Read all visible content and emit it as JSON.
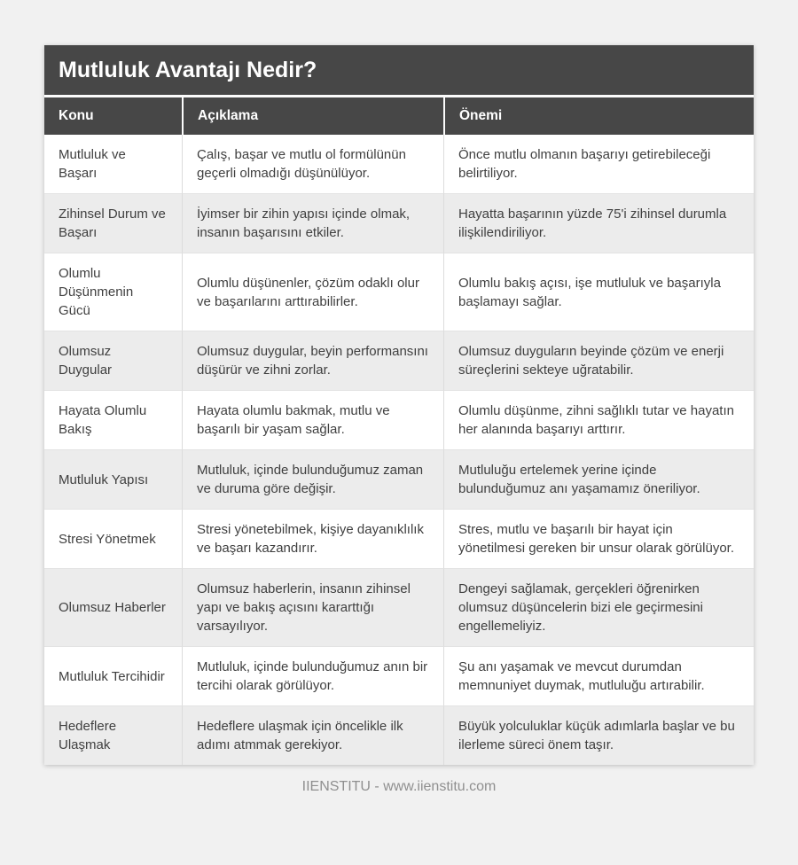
{
  "page": {
    "background_color": "#f1f1f1",
    "accent_dark_color": "#474747",
    "row_alt_color": "#ececec",
    "footer_text": "IIENSTITU - www.iienstitu.com"
  },
  "table": {
    "title": "Mutluluk Avantajı Nedir?",
    "columns": [
      "Konu",
      "Açıklama",
      "Önemi"
    ],
    "rows": [
      {
        "konu": "Mutluluk ve Başarı",
        "aciklama": "Çalış, başar ve mutlu ol formülünün geçerli olmadığı düşünülüyor.",
        "onemi": "Önce mutlu olmanın başarıyı getirebileceği belirtiliyor."
      },
      {
        "konu": "Zihinsel Durum ve Başarı",
        "aciklama": "İyimser bir zihin yapısı içinde olmak, insanın başarısını etkiler.",
        "onemi": "Hayatta başarının yüzde 75'i zihinsel durumla ilişkilendiriliyor."
      },
      {
        "konu": "Olumlu Düşünmenin Gücü",
        "aciklama": "Olumlu düşünenler, çözüm odaklı olur ve başarılarını arttırabilirler.",
        "onemi": "Olumlu bakış açısı, işe mutluluk ve başarıyla başlamayı sağlar."
      },
      {
        "konu": "Olumsuz Duygular",
        "aciklama": "Olumsuz duygular, beyin performansını düşürür ve zihni zorlar.",
        "onemi": "Olumsuz duyguların beyinde çözüm ve enerji süreçlerini sekteye uğratabilir."
      },
      {
        "konu": "Hayata Olumlu Bakış",
        "aciklama": "Hayata olumlu bakmak, mutlu ve başarılı bir yaşam sağlar.",
        "onemi": "Olumlu düşünme, zihni sağlıklı tutar ve hayatın her alanında başarıyı arttırır."
      },
      {
        "konu": "Mutluluk Yapısı",
        "aciklama": "Mutluluk, içinde bulunduğumuz zaman ve duruma göre değişir.",
        "onemi": "Mutluluğu ertelemek yerine içinde bulunduğumuz anı yaşamamız öneriliyor."
      },
      {
        "konu": "Stresi Yönetmek",
        "aciklama": "Stresi yönetebilmek, kişiye dayanıklılık ve başarı kazandırır.",
        "onemi": "Stres, mutlu ve başarılı bir hayat için yönetilmesi gereken bir unsur olarak görülüyor."
      },
      {
        "konu": "Olumsuz Haberler",
        "aciklama": "Olumsuz haberlerin, insanın zihinsel yapı ve bakış açısını kararttığı varsayılıyor.",
        "onemi": "Dengeyi sağlamak, gerçekleri öğrenirken olumsuz düşüncelerin bizi ele geçirmesini engellemeliyiz."
      },
      {
        "konu": "Mutluluk Tercihidir",
        "aciklama": "Mutluluk, içinde bulunduğumuz anın bir tercihi olarak görülüyor.",
        "onemi": "Şu anı yaşamak ve mevcut durumdan memnuniyet duymak, mutluluğu artırabilir."
      },
      {
        "konu": "Hedeflere Ulaşmak",
        "aciklama": "Hedeflere ulaşmak için öncelikle ilk adımı atmmak gerekiyor.",
        "onemi": "Büyük yolculuklar küçük adımlarla başlar ve bu ilerleme süreci önem taşır."
      }
    ]
  }
}
